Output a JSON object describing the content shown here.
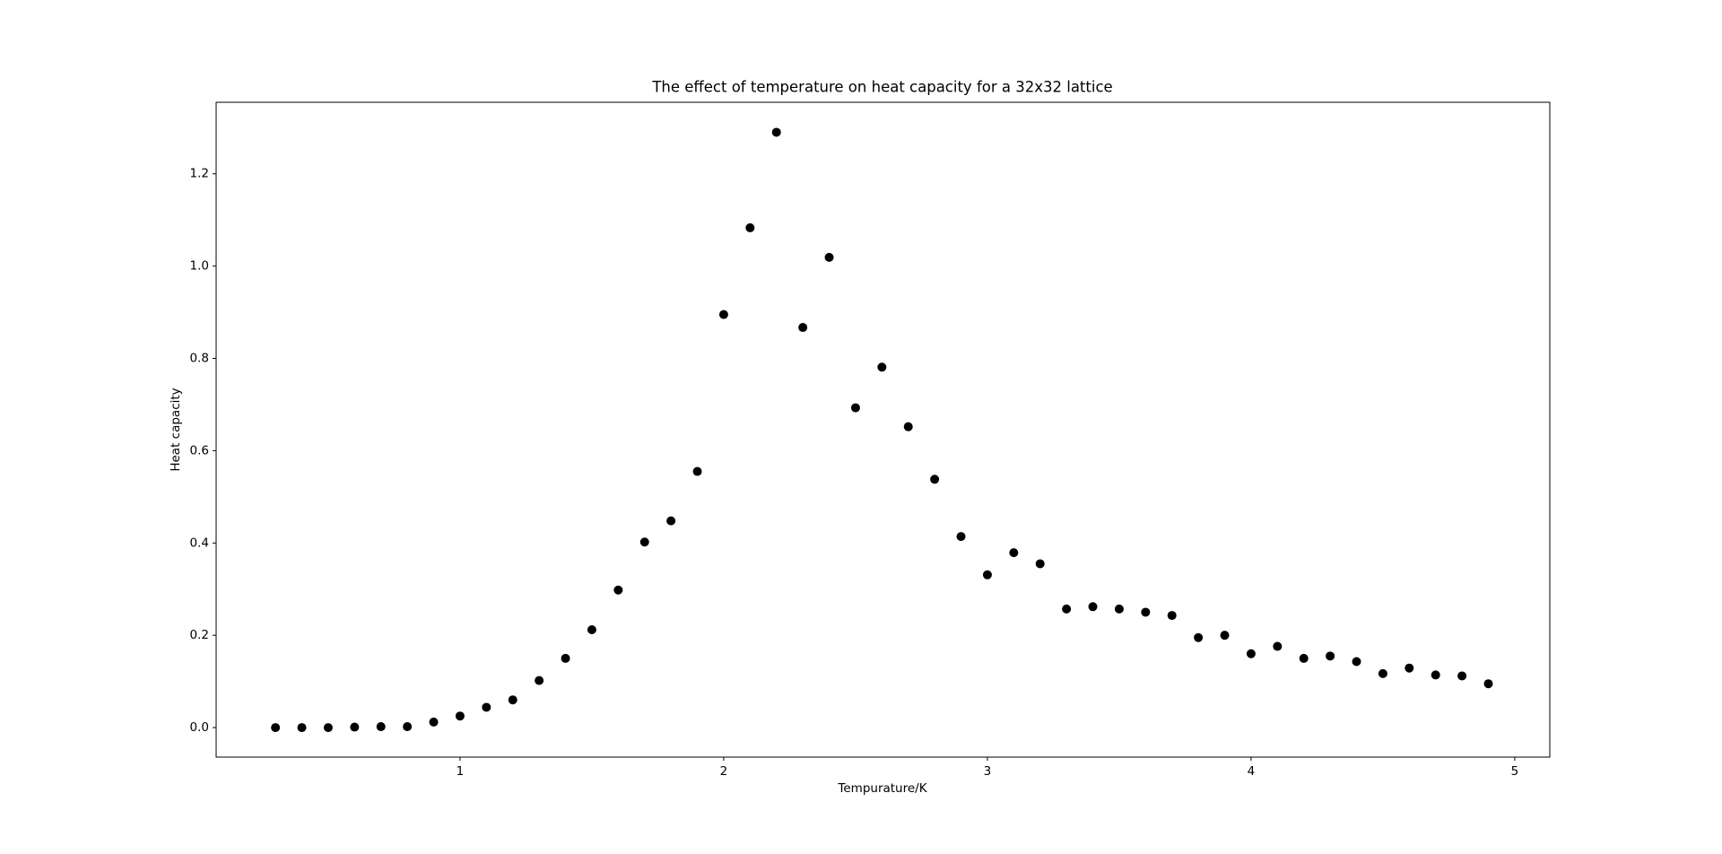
{
  "chart_data": {
    "type": "scatter",
    "title": "The effect of temperature on heat capacity for a 32x32 lattice",
    "x_label": "Tempurature/K",
    "y_label": "Heat capacity",
    "color": "#000000",
    "x": [
      0.3,
      0.4,
      0.5,
      0.6,
      0.7,
      0.8,
      0.9,
      1.0,
      1.1,
      1.2,
      1.3,
      1.4,
      1.5,
      1.6,
      1.7,
      1.8,
      1.9,
      2.0,
      2.1,
      2.2,
      2.3,
      2.4,
      2.5,
      2.6,
      2.7,
      2.8,
      2.9,
      3.0,
      3.1,
      3.2,
      3.3,
      3.4,
      3.5,
      3.6,
      3.7,
      3.8,
      3.9,
      4.0,
      4.1,
      4.2,
      4.3,
      4.4,
      4.5,
      4.6,
      4.7,
      4.8,
      4.9
    ],
    "values": [
      0.0,
      0.0,
      0.0,
      0.001,
      0.002,
      0.002,
      0.012,
      0.025,
      0.044,
      0.06,
      0.102,
      0.15,
      0.212,
      0.298,
      0.402,
      0.448,
      0.555,
      0.895,
      1.083,
      1.29,
      0.867,
      1.019,
      0.693,
      0.781,
      0.652,
      0.538,
      0.414,
      0.331,
      0.379,
      0.355,
      0.257,
      0.262,
      0.257,
      0.25,
      0.243,
      0.195,
      0.2,
      0.16,
      0.176,
      0.15,
      0.155,
      0.143,
      0.117,
      0.129,
      0.114,
      0.112,
      0.095
    ],
    "xlim": [
      0.075,
      5.133
    ],
    "ylim": [
      -0.064,
      1.355
    ],
    "xticks": [
      1,
      2,
      3,
      4,
      5
    ],
    "yticks": [
      {
        "value": 0,
        "label": "0.0"
      },
      0.2,
      0.4,
      0.6,
      0.8,
      {
        "value": 1,
        "label": "1.0"
      },
      1.2
    ]
  }
}
